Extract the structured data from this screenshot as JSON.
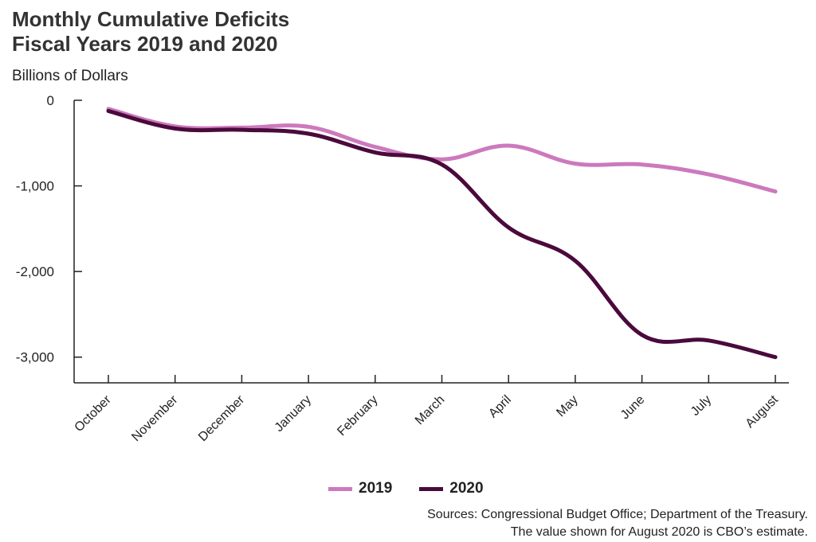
{
  "header": {
    "title_line1": "Monthly Cumulative Deficits",
    "title_line2": "Fiscal Years 2019 and 2020",
    "subtitle": "Billions of Dollars"
  },
  "source": {
    "line1": "Sources: Congressional Budget Office; Department of the Treasury.",
    "line2": "The value shown for August 2020 is CBO’s estimate."
  },
  "colors": {
    "s2019": "#cc79bd",
    "s2020": "#4a0a3c",
    "axis": "#222222"
  },
  "chart_data": {
    "type": "line",
    "title": "Monthly Cumulative Deficits Fiscal Years 2019 and 2020",
    "ylabel": "Billions of Dollars",
    "categories": [
      "October",
      "November",
      "December",
      "January",
      "February",
      "March",
      "April",
      "May",
      "June",
      "July",
      "August"
    ],
    "ylim": [
      -3300,
      0
    ],
    "yticks": [
      0,
      -1000,
      -2000,
      -3000
    ],
    "ytick_labels": [
      "0",
      "-1,000",
      "-2,000",
      "-3,000"
    ],
    "legend_position": "bottom",
    "grid": false,
    "series": [
      {
        "name": "2019",
        "color": "#cc79bd",
        "values": [
          -100,
          -305,
          -320,
          -310,
          -545,
          -690,
          -530,
          -740,
          -750,
          -865,
          -1065
        ]
      },
      {
        "name": "2020",
        "color": "#4a0a3c",
        "values": [
          -125,
          -330,
          -345,
          -390,
          -610,
          -750,
          -1485,
          -1875,
          -2740,
          -2805,
          -3000
        ]
      }
    ]
  }
}
